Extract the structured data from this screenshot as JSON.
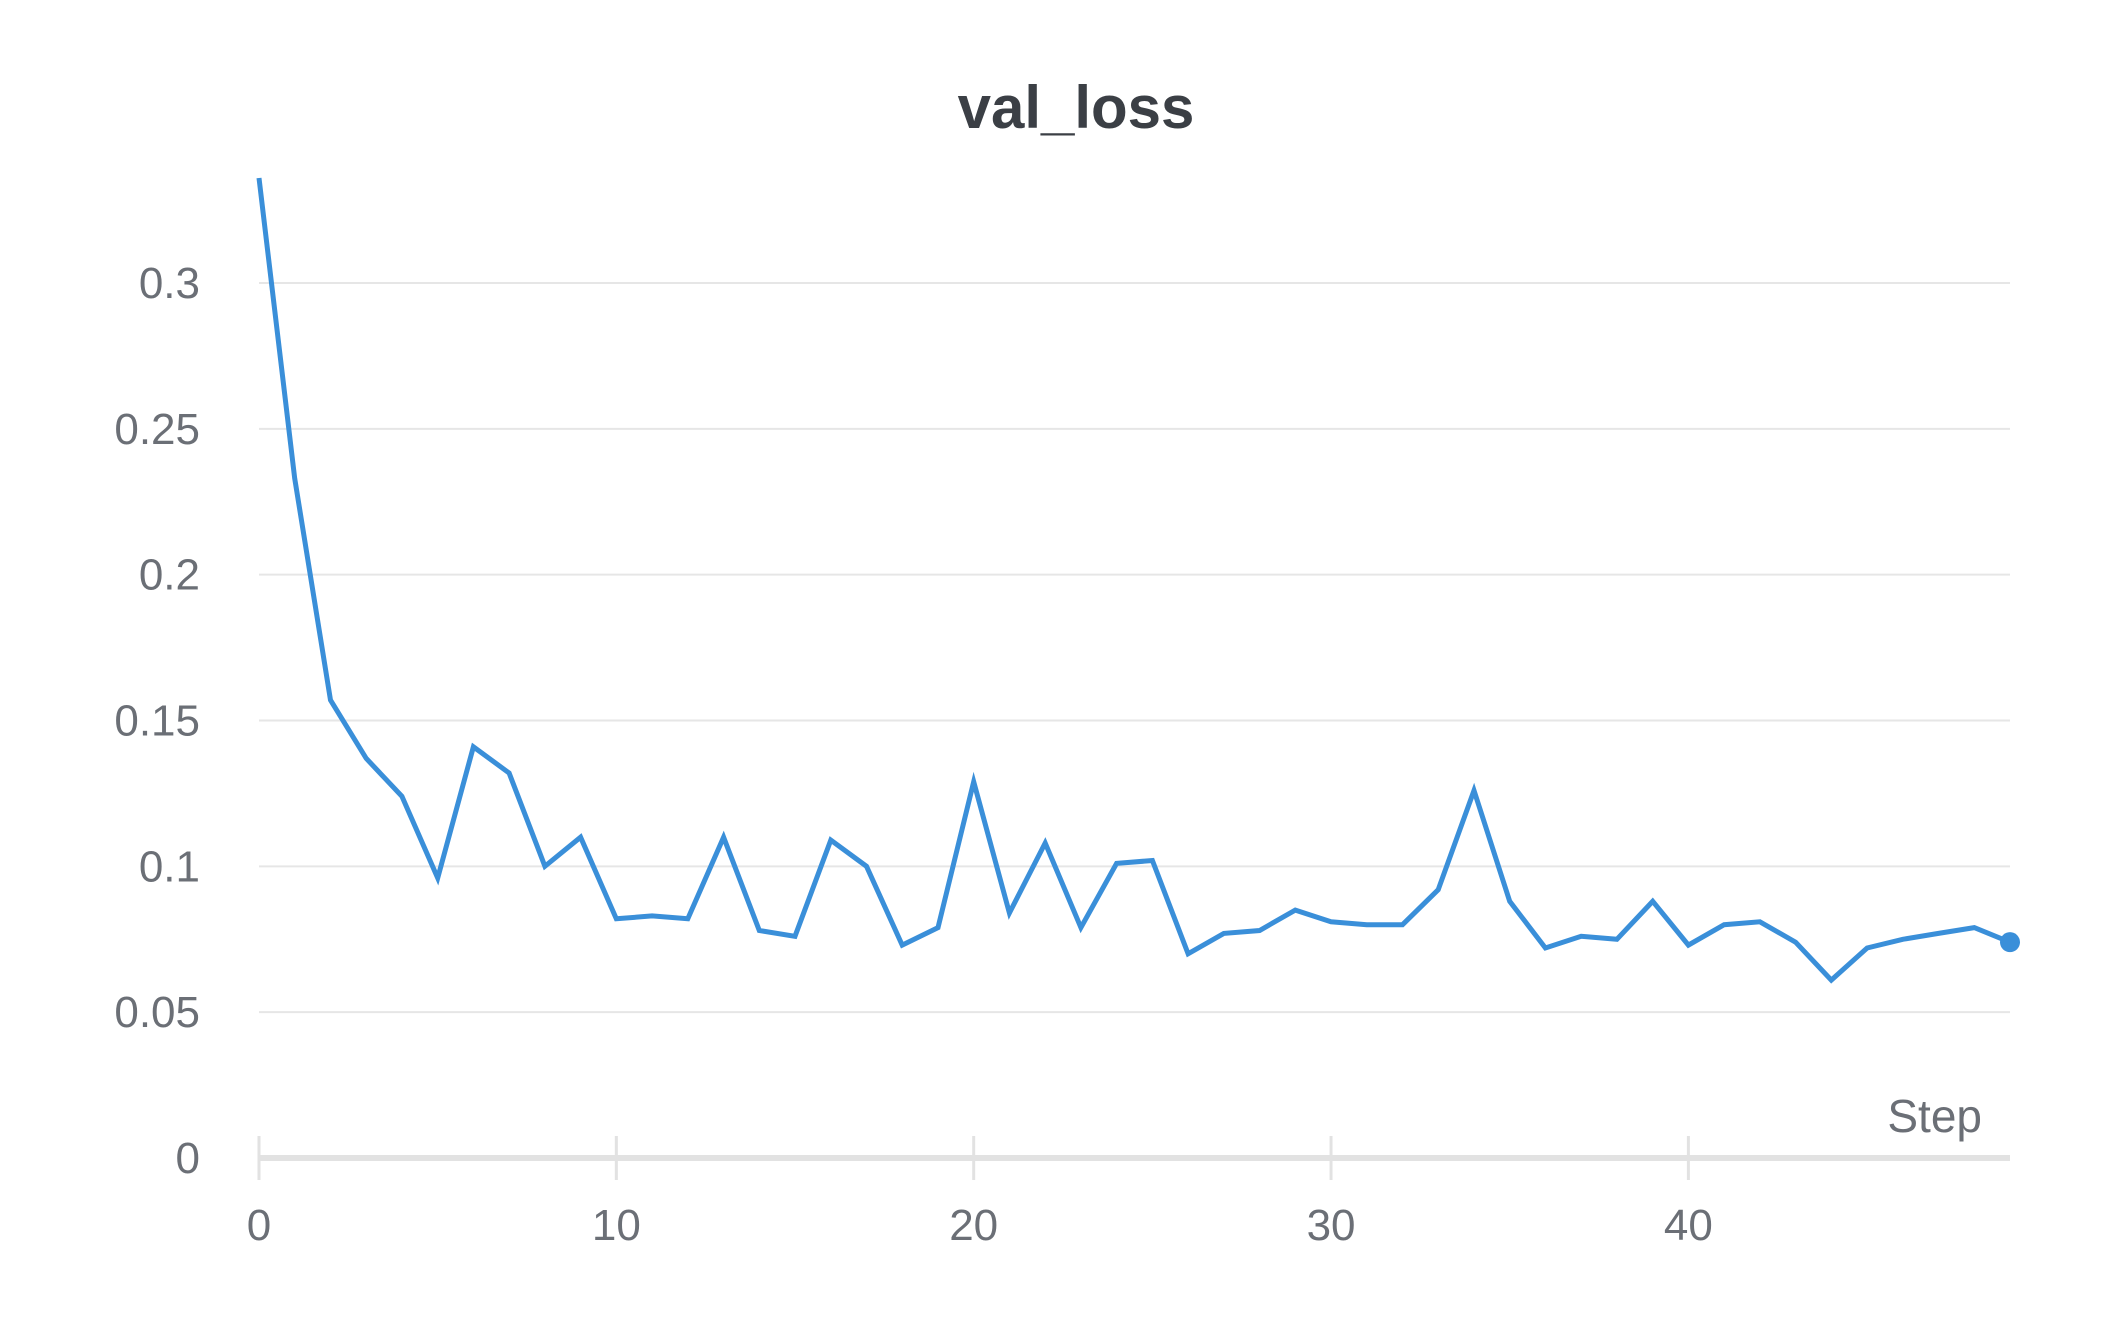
{
  "chart_data": {
    "type": "line",
    "title": "val_loss",
    "xlabel": "Step",
    "ylabel": "",
    "xlim": [
      0,
      49
    ],
    "ylim": [
      0,
      0.336
    ],
    "x_ticks": [
      0,
      10,
      20,
      30,
      40
    ],
    "x_tick_labels": [
      "0",
      "10",
      "20",
      "30",
      "40"
    ],
    "y_ticks": [
      0,
      0.05,
      0.1,
      0.15,
      0.2,
      0.25,
      0.3
    ],
    "y_tick_labels": [
      "0",
      "0.05",
      "0.1",
      "0.15",
      "0.2",
      "0.25",
      "0.3"
    ],
    "grid": true,
    "legend": "none",
    "colors": {
      "line": "#3a8fd9",
      "grid": "#e6e6e6",
      "x_axis": "#e2e2e2",
      "title": "#3b3f45",
      "tick_label": "#6b6f76"
    },
    "series": [
      {
        "x": [
          0,
          1,
          2,
          3,
          4,
          5,
          6,
          7,
          8,
          9,
          10,
          11,
          12,
          13,
          14,
          15,
          16,
          17,
          18,
          19,
          20,
          21,
          22,
          23,
          24,
          25,
          26,
          27,
          28,
          29,
          30,
          31,
          32,
          33,
          34,
          35,
          36,
          37,
          38,
          39,
          40,
          41,
          42,
          43,
          44,
          45,
          46,
          47,
          48,
          49
        ],
        "values": [
          0.336,
          0.233,
          0.157,
          0.137,
          0.124,
          0.096,
          0.141,
          0.132,
          0.1,
          0.11,
          0.082,
          0.083,
          0.082,
          0.11,
          0.078,
          0.076,
          0.109,
          0.1,
          0.073,
          0.079,
          0.129,
          0.084,
          0.108,
          0.079,
          0.101,
          0.102,
          0.07,
          0.077,
          0.078,
          0.085,
          0.081,
          0.08,
          0.08,
          0.092,
          0.126,
          0.088,
          0.072,
          0.076,
          0.075,
          0.088,
          0.073,
          0.08,
          0.081,
          0.074,
          0.061,
          0.072,
          0.075,
          0.077,
          0.079,
          0.074
        ]
      }
    ]
  }
}
